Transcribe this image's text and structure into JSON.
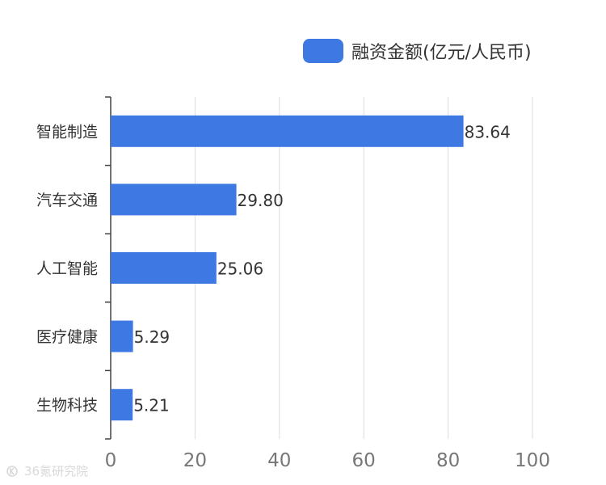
{
  "chart_data": {
    "type": "bar",
    "orientation": "horizontal",
    "categories": [
      "智能制造",
      "汽车交通",
      "人工智能",
      "医疗健康",
      "生物科技"
    ],
    "series": [
      {
        "name": "融资金额(亿元/人民币)",
        "values": [
          83.64,
          29.8,
          25.06,
          5.29,
          5.21
        ],
        "value_labels": [
          "83.64",
          "29.80",
          "25.06",
          "5.29",
          "5.21"
        ],
        "color": "#3e78e2"
      }
    ],
    "xlim": [
      0,
      100
    ],
    "xticks": [
      0,
      20,
      40,
      60,
      80,
      100
    ],
    "grid": true,
    "legend": "top-right"
  },
  "watermark": {
    "text": "36氪研究院",
    "icon": "kr-logo-icon"
  },
  "colors": {
    "bar": "#3e78e2",
    "grid": "#dddddd",
    "axis": "#444444",
    "tick_text": "#777777",
    "category_text": "#333333"
  }
}
